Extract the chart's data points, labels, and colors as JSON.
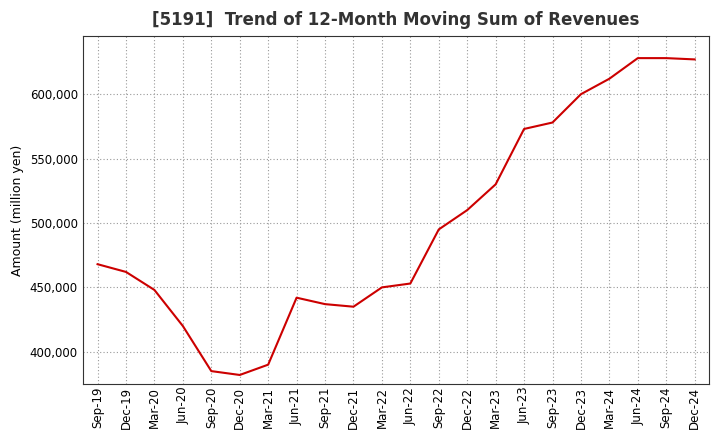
{
  "title": "[5191]  Trend of 12-Month Moving Sum of Revenues",
  "ylabel": "Amount (million yen)",
  "background_color": "#ffffff",
  "line_color": "#cc0000",
  "grid_color": "#999999",
  "x_labels": [
    "Sep-19",
    "Dec-19",
    "Mar-20",
    "Jun-20",
    "Sep-20",
    "Dec-20",
    "Mar-21",
    "Jun-21",
    "Sep-21",
    "Dec-21",
    "Mar-22",
    "Jun-22",
    "Sep-22",
    "Dec-22",
    "Mar-23",
    "Jun-23",
    "Sep-23",
    "Dec-23",
    "Mar-24",
    "Jun-24",
    "Sep-24",
    "Dec-24"
  ],
  "values": [
    468000,
    462000,
    448000,
    420000,
    385000,
    382000,
    390000,
    442000,
    437000,
    435000,
    450000,
    453000,
    495000,
    510000,
    530000,
    573000,
    578000,
    600000,
    612000,
    628000,
    628000,
    627000
  ],
  "ylim_min": 375000,
  "ylim_max": 645000,
  "yticks": [
    400000,
    450000,
    500000,
    550000,
    600000
  ],
  "title_fontsize": 12,
  "label_fontsize": 9,
  "tick_fontsize": 8.5
}
